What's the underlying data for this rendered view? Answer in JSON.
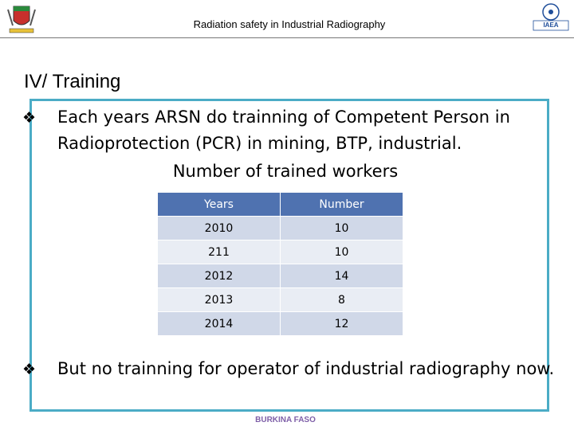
{
  "header": {
    "title": "Radiation safety in Industrial Radiography",
    "logo_right": "IAEA"
  },
  "section_title": "IV/ Training",
  "bullets": [
    {
      "marker": "❖",
      "text": "Each years ARSN do trainning of Competent  Person in Radioprotection (PCR) in mining, BTP, industrial."
    },
    {
      "marker": "❖",
      "text": "But no trainning for operator of industrial radiography now."
    }
  ],
  "table": {
    "caption": "Number of trained workers",
    "columns": [
      "Years",
      "Number"
    ],
    "rows": [
      [
        2010,
        10
      ],
      [
        211,
        10
      ],
      [
        2012,
        14
      ],
      [
        2013,
        8
      ],
      [
        2014,
        12
      ]
    ]
  },
  "footer": "BURKINA FASO"
}
